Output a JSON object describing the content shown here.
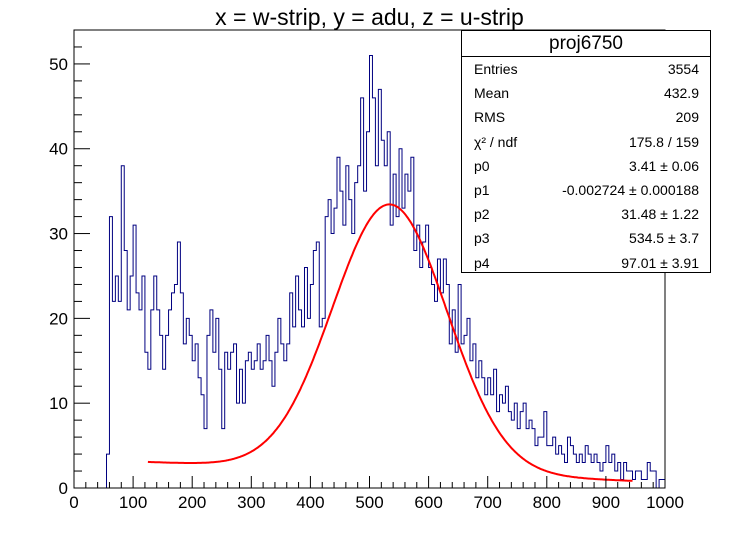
{
  "title": "x = w-strip, y = adu, z = u-strip",
  "stats": {
    "name": "proj6750",
    "rows": [
      {
        "key": "Entries",
        "value": "3554"
      },
      {
        "key": "Mean",
        "value": "432.9"
      },
      {
        "key": "RMS",
        "value": "209"
      },
      {
        "key": "χ² / ndf",
        "value": "175.8 / 159"
      },
      {
        "key": "p0",
        "value": "3.41 ± 0.06"
      },
      {
        "key": "p1",
        "value": "-0.002724 ± 0.000188"
      },
      {
        "key": "p2",
        "value": "31.48 ± 1.22"
      },
      {
        "key": "p3",
        "value": "534.5 ± 3.7"
      },
      {
        "key": "p4",
        "value": "97.01 ± 3.91"
      }
    ]
  },
  "chart_data": {
    "type": "histogram",
    "xlim": [
      0,
      1000
    ],
    "ylim": [
      0,
      54
    ],
    "x_ticks": [
      0,
      100,
      200,
      300,
      400,
      500,
      600,
      700,
      800,
      900,
      1000
    ],
    "y_ticks": [
      0,
      10,
      20,
      30,
      40,
      50
    ],
    "bin_width": 5,
    "hist_color": "#000080",
    "fit_color": "#ff0000",
    "bins": [
      [
        55,
        4
      ],
      [
        60,
        32
      ],
      [
        65,
        22
      ],
      [
        70,
        25
      ],
      [
        75,
        22
      ],
      [
        80,
        38
      ],
      [
        85,
        28
      ],
      [
        90,
        21
      ],
      [
        95,
        25
      ],
      [
        100,
        31
      ],
      [
        105,
        23
      ],
      [
        110,
        21
      ],
      [
        115,
        25
      ],
      [
        120,
        16
      ],
      [
        125,
        14
      ],
      [
        130,
        21
      ],
      [
        135,
        25
      ],
      [
        140,
        21
      ],
      [
        145,
        18
      ],
      [
        150,
        14
      ],
      [
        155,
        18
      ],
      [
        160,
        21
      ],
      [
        165,
        23
      ],
      [
        170,
        24
      ],
      [
        175,
        29
      ],
      [
        180,
        23
      ],
      [
        185,
        17
      ],
      [
        190,
        20
      ],
      [
        195,
        18
      ],
      [
        200,
        15
      ],
      [
        205,
        17
      ],
      [
        210,
        13
      ],
      [
        215,
        11
      ],
      [
        220,
        7
      ],
      [
        225,
        18
      ],
      [
        230,
        21
      ],
      [
        235,
        16
      ],
      [
        240,
        20
      ],
      [
        245,
        14
      ],
      [
        250,
        7
      ],
      [
        255,
        16
      ],
      [
        260,
        14
      ],
      [
        265,
        16
      ],
      [
        270,
        17
      ],
      [
        275,
        10
      ],
      [
        280,
        14
      ],
      [
        285,
        10
      ],
      [
        290,
        15
      ],
      [
        295,
        16
      ],
      [
        300,
        14
      ],
      [
        305,
        15
      ],
      [
        310,
        17
      ],
      [
        315,
        14
      ],
      [
        320,
        15
      ],
      [
        325,
        18
      ],
      [
        330,
        15
      ],
      [
        335,
        12
      ],
      [
        340,
        16
      ],
      [
        345,
        20
      ],
      [
        350,
        17
      ],
      [
        355,
        15
      ],
      [
        360,
        17
      ],
      [
        365,
        23
      ],
      [
        370,
        19
      ],
      [
        375,
        25
      ],
      [
        380,
        21
      ],
      [
        385,
        19
      ],
      [
        390,
        26
      ],
      [
        395,
        20
      ],
      [
        400,
        24
      ],
      [
        405,
        28
      ],
      [
        410,
        29
      ],
      [
        415,
        19
      ],
      [
        420,
        20
      ],
      [
        425,
        32
      ],
      [
        430,
        34
      ],
      [
        435,
        30
      ],
      [
        440,
        33
      ],
      [
        445,
        39
      ],
      [
        450,
        35
      ],
      [
        455,
        31
      ],
      [
        460,
        38
      ],
      [
        465,
        34
      ],
      [
        470,
        30
      ],
      [
        475,
        36
      ],
      [
        480,
        38
      ],
      [
        485,
        46
      ],
      [
        490,
        35
      ],
      [
        495,
        42
      ],
      [
        500,
        51
      ],
      [
        505,
        46
      ],
      [
        510,
        38
      ],
      [
        515,
        47
      ],
      [
        520,
        41
      ],
      [
        525,
        38
      ],
      [
        530,
        42
      ],
      [
        535,
        31
      ],
      [
        540,
        37
      ],
      [
        545,
        32
      ],
      [
        550,
        40
      ],
      [
        555,
        33
      ],
      [
        560,
        37
      ],
      [
        565,
        35
      ],
      [
        570,
        39
      ],
      [
        575,
        28
      ],
      [
        580,
        31
      ],
      [
        585,
        26
      ],
      [
        590,
        29
      ],
      [
        595,
        31
      ],
      [
        600,
        26
      ],
      [
        605,
        24
      ],
      [
        610,
        22
      ],
      [
        615,
        27
      ],
      [
        620,
        23
      ],
      [
        625,
        27
      ],
      [
        630,
        24
      ],
      [
        635,
        17
      ],
      [
        640,
        21
      ],
      [
        645,
        16
      ],
      [
        650,
        24
      ],
      [
        655,
        17
      ],
      [
        660,
        18
      ],
      [
        665,
        20
      ],
      [
        670,
        15
      ],
      [
        675,
        17
      ],
      [
        680,
        13
      ],
      [
        685,
        15
      ],
      [
        690,
        13
      ],
      [
        695,
        11
      ],
      [
        700,
        13
      ],
      [
        705,
        11
      ],
      [
        710,
        14
      ],
      [
        715,
        9
      ],
      [
        720,
        11
      ],
      [
        725,
        10
      ],
      [
        730,
        12
      ],
      [
        735,
        9
      ],
      [
        740,
        8
      ],
      [
        745,
        10
      ],
      [
        750,
        7
      ],
      [
        755,
        9
      ],
      [
        760,
        10
      ],
      [
        765,
        7
      ],
      [
        770,
        8
      ],
      [
        775,
        7
      ],
      [
        780,
        5
      ],
      [
        785,
        6
      ],
      [
        790,
        6
      ],
      [
        795,
        9
      ],
      [
        800,
        5
      ],
      [
        805,
        5
      ],
      [
        810,
        6
      ],
      [
        815,
        4
      ],
      [
        820,
        5
      ],
      [
        825,
        4
      ],
      [
        830,
        3
      ],
      [
        835,
        6
      ],
      [
        840,
        5
      ],
      [
        845,
        4
      ],
      [
        850,
        3
      ],
      [
        855,
        4
      ],
      [
        860,
        3
      ],
      [
        865,
        5
      ],
      [
        870,
        4
      ],
      [
        875,
        3
      ],
      [
        880,
        4
      ],
      [
        885,
        3
      ],
      [
        890,
        2
      ],
      [
        895,
        3
      ],
      [
        900,
        5
      ],
      [
        905,
        3
      ],
      [
        910,
        4
      ],
      [
        915,
        2
      ],
      [
        920,
        3
      ],
      [
        925,
        1
      ],
      [
        930,
        3
      ],
      [
        935,
        2
      ],
      [
        940,
        2
      ],
      [
        945,
        1
      ],
      [
        950,
        2
      ],
      [
        955,
        2
      ],
      [
        960,
        1
      ],
      [
        965,
        1
      ],
      [
        970,
        3
      ],
      [
        975,
        2
      ],
      [
        980,
        2
      ],
      [
        985,
        0
      ],
      [
        990,
        1
      ],
      [
        995,
        1
      ]
    ],
    "fit": {
      "function": "p0 + p1*x + p2*exp(-0.5*((x-p3)/p4)^2)",
      "params": {
        "p0": 3.41,
        "p1": -0.002724,
        "p2": 31.48,
        "p3": 534.5,
        "p4": 97.01
      },
      "range": [
        125,
        945
      ]
    }
  }
}
